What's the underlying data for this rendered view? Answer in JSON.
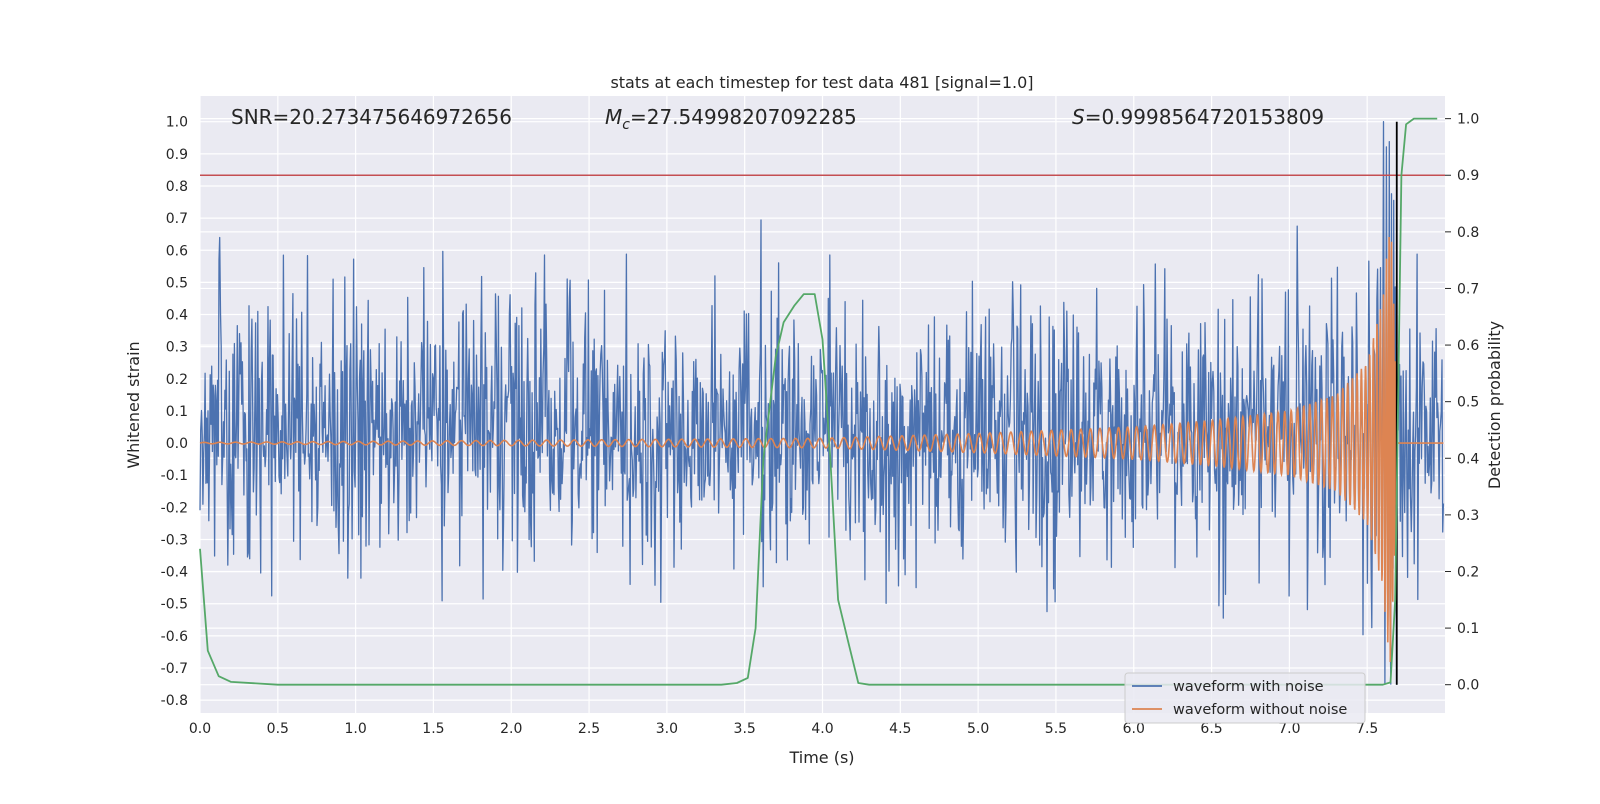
{
  "chart_data": {
    "type": "line",
    "title": "stats at each timestep for test data 481 [signal=1.0]",
    "xlabel": "Time (s)",
    "ylabel_left": "Whitened strain",
    "ylabel_right": "Detection probability",
    "xlim": [
      0.0,
      8.0
    ],
    "ylim_left": [
      -0.84,
      1.08
    ],
    "ylim_right": [
      -0.05,
      1.04
    ],
    "x_ticks": [
      "0.0",
      "0.5",
      "1.0",
      "1.5",
      "2.0",
      "2.5",
      "3.0",
      "3.5",
      "4.0",
      "4.5",
      "5.0",
      "5.5",
      "6.0",
      "6.5",
      "7.0",
      "7.5"
    ],
    "y_left_ticks": [
      "1.0",
      "0.9",
      "0.8",
      "0.7",
      "0.6",
      "0.5",
      "0.4",
      "0.3",
      "0.2",
      "0.1",
      "0.0",
      "-0.1",
      "-0.2",
      "-0.3",
      "-0.4",
      "-0.5",
      "-0.6",
      "-0.7",
      "-0.8"
    ],
    "y_right_ticks": [
      "1.0",
      "0.9",
      "0.8",
      "0.7",
      "0.6",
      "0.5",
      "0.4",
      "0.3",
      "0.2",
      "0.1",
      "0.0"
    ],
    "annotations": {
      "snr": "SNR=20.273475646972656",
      "mc_symbol": "M",
      "mc_sub": "c",
      "mc_value": "=27.54998207092285",
      "s_symbol": "S",
      "s_value": "=0.9998564720153809"
    },
    "threshold_right": 0.9,
    "merger_time": 7.69,
    "legend_position": "lower-right",
    "series": [
      {
        "name": "waveform with noise",
        "color": "#4c72b0",
        "description": "noisy whitened strain, roughly -0.35 to 0.45 with spikes to about ±0.65"
      },
      {
        "name": "waveform without noise",
        "color": "#dd8452",
        "description": "chirp signal growing from ~0 to amplitude ~0.7 near 7.65 s then dropping to 0",
        "envelope_points": [
          [
            0.0,
            0.002
          ],
          [
            2.5,
            0.01
          ],
          [
            4.0,
            0.015
          ],
          [
            5.0,
            0.03
          ],
          [
            6.0,
            0.05
          ],
          [
            6.5,
            0.07
          ],
          [
            7.0,
            0.1
          ],
          [
            7.3,
            0.15
          ],
          [
            7.5,
            0.25
          ],
          [
            7.6,
            0.45
          ],
          [
            7.65,
            0.72
          ],
          [
            7.68,
            0.3
          ],
          [
            7.7,
            0.0
          ]
        ]
      },
      {
        "name": "detection probability",
        "color": "#55a868",
        "axis": "right",
        "points": [
          [
            0.0,
            0.24
          ],
          [
            0.05,
            0.06
          ],
          [
            0.12,
            0.015
          ],
          [
            0.2,
            0.005
          ],
          [
            0.5,
            0.0
          ],
          [
            1.0,
            0.0
          ],
          [
            2.0,
            0.0
          ],
          [
            3.0,
            0.0
          ],
          [
            3.35,
            0.0
          ],
          [
            3.45,
            0.003
          ],
          [
            3.52,
            0.012
          ],
          [
            3.57,
            0.1
          ],
          [
            3.62,
            0.4
          ],
          [
            3.7,
            0.58
          ],
          [
            3.75,
            0.64
          ],
          [
            3.82,
            0.67
          ],
          [
            3.88,
            0.69
          ],
          [
            3.95,
            0.69
          ],
          [
            4.0,
            0.61
          ],
          [
            4.05,
            0.4
          ],
          [
            4.1,
            0.15
          ],
          [
            4.17,
            0.07
          ],
          [
            4.23,
            0.003
          ],
          [
            4.3,
            0.0
          ],
          [
            5.0,
            0.0
          ],
          [
            6.0,
            0.0
          ],
          [
            7.0,
            0.0
          ],
          [
            7.6,
            0.0
          ],
          [
            7.65,
            0.004
          ],
          [
            7.68,
            0.15
          ],
          [
            7.72,
            0.9
          ],
          [
            7.75,
            0.99
          ],
          [
            7.8,
            1.0
          ],
          [
            7.95,
            1.0
          ]
        ]
      }
    ]
  },
  "legend": {
    "noise_label": "waveform with noise",
    "clean_label": "waveform without noise"
  },
  "colors": {
    "background": "#eaeaf2",
    "noise": "#4c72b0",
    "clean": "#dd8452",
    "probability": "#55a868",
    "threshold": "#c44e52",
    "merger": "#000000"
  }
}
